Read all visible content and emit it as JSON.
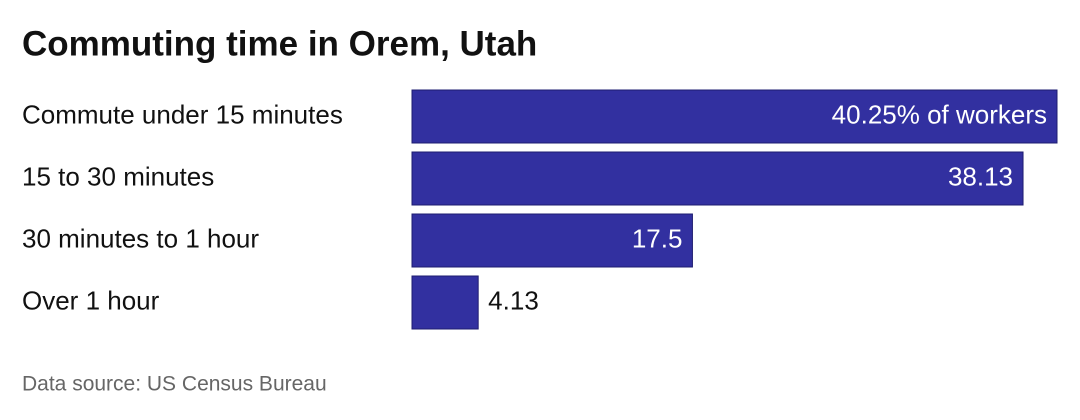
{
  "chart_data": {
    "type": "bar",
    "orientation": "horizontal",
    "title": "Commuting time in Orem, Utah",
    "categories": [
      "Commute under 15 minutes",
      "15 to 30 minutes",
      "30 minutes to 1 hour",
      "Over 1 hour"
    ],
    "values": [
      40.25,
      38.13,
      17.5,
      4.13
    ],
    "value_labels": [
      "40.25% of workers",
      "38.13",
      "17.5",
      "4.13"
    ],
    "color": "#3230a0",
    "source": "Data source: US Census Bureau"
  }
}
